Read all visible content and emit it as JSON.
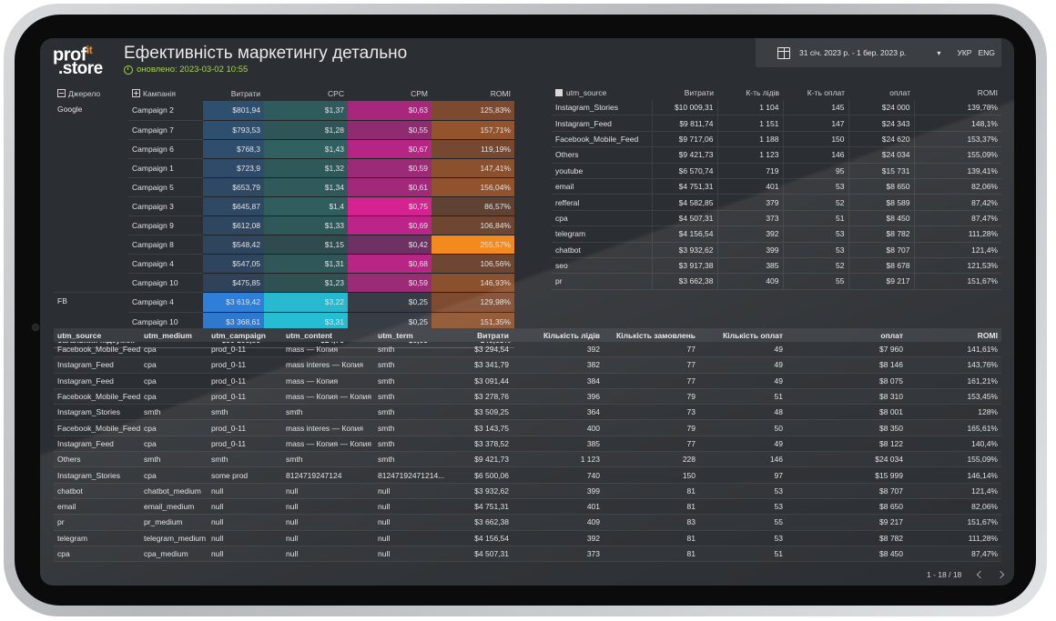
{
  "header": {
    "logo_line1": "prof",
    "logo_it": "it",
    "logo_line2": ".store",
    "title": "Ефективність маркетингу детально",
    "updated": "оновлено: 2023-03-02 10:55",
    "date_range": "31 січ. 2023 р. - 1 бер. 2023 р.",
    "dropdown_arrow": "▾",
    "lang_ukr": "УКР",
    "lang_eng": "ENG"
  },
  "campaigns": {
    "headers": {
      "source": "Джерело",
      "campaign": "Кампанія",
      "spend": "Витрати",
      "cpc": "CPC",
      "cpm": "CPM",
      "romi": "ROMI"
    },
    "rows": [
      {
        "source": "Google",
        "campaign": "Campaign 2",
        "spend": "$801,94",
        "cpc": "$1,37",
        "cpm": "$0,63",
        "romi": "125,83%",
        "cs": "#2f4f6f",
        "cc": "#2f5b5c",
        "cm": "#a8267c",
        "cr": "#7d4a30"
      },
      {
        "source": "",
        "campaign": "Campaign 7",
        "spend": "$793,53",
        "cpc": "$1,28",
        "cpm": "$0,55",
        "romi": "157,71%",
        "cs": "#2f4f6f",
        "cc": "#2f5556",
        "cm": "#8f2b71",
        "cr": "#92532d"
      },
      {
        "source": "",
        "campaign": "Campaign 6",
        "spend": "$768,3",
        "cpc": "$1,43",
        "cpm": "$0,67",
        "romi": "119,19%",
        "cs": "#2f4d6c",
        "cc": "#30605f",
        "cm": "#b52584",
        "cr": "#774830"
      },
      {
        "source": "",
        "campaign": "Campaign 1",
        "spend": "$723,9",
        "cpc": "$1,32",
        "cpm": "$0,59",
        "romi": "147,41%",
        "cs": "#2f4b69",
        "cc": "#2f5859",
        "cm": "#9b2a77",
        "cr": "#8b502e"
      },
      {
        "source": "",
        "campaign": "Campaign 5",
        "spend": "$653,79",
        "cpc": "$1,34",
        "cpm": "$0,61",
        "romi": "156,04%",
        "cs": "#2f4864",
        "cc": "#2f595a",
        "cm": "#a1297a",
        "cr": "#91532d"
      },
      {
        "source": "",
        "campaign": "Campaign 3",
        "spend": "$645,87",
        "cpc": "$1,4",
        "cpm": "$0,75",
        "romi": "86,57%",
        "cs": "#2f4863",
        "cc": "#305e5e",
        "cm": "#d42290",
        "cr": "#5f4233"
      },
      {
        "source": "",
        "campaign": "Campaign 9",
        "spend": "$612,08",
        "cpc": "$1,33",
        "cpm": "$0,69",
        "romi": "106,84%",
        "cs": "#2f4661",
        "cc": "#2f5859",
        "cm": "#bc2487",
        "cr": "#6f4631"
      },
      {
        "source": "",
        "campaign": "Campaign 8",
        "spend": "$548,42",
        "cpc": "$1,15",
        "cpm": "$0,42",
        "romi": "255,57%",
        "cs": "#2f445d",
        "cc": "#2f4b4e",
        "cm": "#6e3163",
        "cr": "#f28a1d"
      },
      {
        "source": "",
        "campaign": "Campaign 4",
        "spend": "$547,05",
        "cpc": "$1,31",
        "cpm": "$0,68",
        "romi": "106,56%",
        "cs": "#2f445d",
        "cc": "#2f5758",
        "cm": "#b72585",
        "cr": "#6f4631"
      },
      {
        "source": "",
        "campaign": "Campaign 10",
        "spend": "$475,85",
        "cpc": "$1,23",
        "cpm": "$0,59",
        "romi": "146,93%",
        "cs": "#2f4259",
        "cc": "#2f5152",
        "cm": "#9b2a77",
        "cr": "#8b502e"
      },
      {
        "source": "FB",
        "campaign": "Campaign 4",
        "spend": "$3 619,42",
        "cpc": "$3,22",
        "cpm": "$0,25",
        "romi": "129,98%",
        "cs": "#2f7ed8",
        "cc": "#28b8cf",
        "cm": "#383c44",
        "cr": "#7f4b2f"
      },
      {
        "source": "",
        "campaign": "Campaign 10",
        "spend": "$3 368,61",
        "cpc": "$3,31",
        "cpm": "$0,25",
        "romi": "151,35%",
        "cs": "#2f78cd",
        "cc": "#26bdd3",
        "cm": "#383c44",
        "cr": "#8e522d"
      }
    ],
    "total": {
      "label": "Загальний підсумок",
      "spend": "$36 108,85",
      "cpc": "$24,75",
      "cpm": "$0,03",
      "romi": "145,63%"
    }
  },
  "sources": {
    "headers": {
      "source": "utm_source",
      "spend": "Витрати",
      "leads": "К-ть лідів",
      "payments": "К-ть оплат",
      "paid": "оплат",
      "romi": "ROMI"
    },
    "rows": [
      {
        "source": "Instagram_Stories",
        "spend": "$10 009,31",
        "leads": "1 104",
        "payments": "145",
        "paid": "$24 000",
        "romi": "139,78%"
      },
      {
        "source": "Instagram_Feed",
        "spend": "$9 811,74",
        "leads": "1 151",
        "payments": "147",
        "paid": "$24 343",
        "romi": "148,1%"
      },
      {
        "source": "Facebook_Mobile_Feed",
        "spend": "$9 717,06",
        "leads": "1 188",
        "payments": "150",
        "paid": "$24 620",
        "romi": "153,37%"
      },
      {
        "source": "Others",
        "spend": "$9 421,73",
        "leads": "1 123",
        "payments": "146",
        "paid": "$24 034",
        "romi": "155,09%"
      },
      {
        "source": "youtube",
        "spend": "$6 570,74",
        "leads": "719",
        "payments": "95",
        "paid": "$15 731",
        "romi": "139,41%"
      },
      {
        "source": "email",
        "spend": "$4 751,31",
        "leads": "401",
        "payments": "53",
        "paid": "$8 650",
        "romi": "82,06%"
      },
      {
        "source": "refferal",
        "spend": "$4 582,85",
        "leads": "379",
        "payments": "52",
        "paid": "$8 589",
        "romi": "87,42%"
      },
      {
        "source": "cpa",
        "spend": "$4 507,31",
        "leads": "373",
        "payments": "51",
        "paid": "$8 450",
        "romi": "87,47%"
      },
      {
        "source": "telegram",
        "spend": "$4 156,54",
        "leads": "392",
        "payments": "53",
        "paid": "$8 782",
        "romi": "111,28%"
      },
      {
        "source": "chatbot",
        "spend": "$3 932,62",
        "leads": "399",
        "payments": "53",
        "paid": "$8 707",
        "romi": "121,4%"
      },
      {
        "source": "seo",
        "spend": "$3 917,38",
        "leads": "385",
        "payments": "52",
        "paid": "$8 678",
        "romi": "121,53%"
      },
      {
        "source": "pr",
        "spend": "$3 662,38",
        "leads": "409",
        "payments": "55",
        "paid": "$9 217",
        "romi": "151,67%"
      }
    ]
  },
  "details": {
    "headers": {
      "source": "utm_source",
      "medium": "utm_medium",
      "campaign": "utm_campaign",
      "content": "utm_content",
      "term": "utm_term",
      "spend": "Витрати",
      "leads": "Кількість лідів",
      "orders": "Кількість замовлень",
      "payments": "Кількість оплат",
      "paid": "оплат",
      "romi": "ROMI"
    },
    "rows": [
      {
        "source": "Facebook_Mobile_Feed",
        "medium": "cpa",
        "campaign": "prod_0-11",
        "content": "mass — Копия",
        "term": "smth",
        "spend": "$3 294,54",
        "leads": "392",
        "orders": "77",
        "payments": "49",
        "paid": "$7 960",
        "romi": "141,61%"
      },
      {
        "source": "Instagram_Feed",
        "medium": "cpa",
        "campaign": "prod_0-11",
        "content": "mass interes — Копия",
        "term": "smth",
        "spend": "$3 341,79",
        "leads": "382",
        "orders": "77",
        "payments": "49",
        "paid": "$8 146",
        "romi": "143,76%"
      },
      {
        "source": "Instagram_Feed",
        "medium": "cpa",
        "campaign": "prod_0-11",
        "content": "mass — Копия",
        "term": "smth",
        "spend": "$3 091,44",
        "leads": "384",
        "orders": "77",
        "payments": "49",
        "paid": "$8 075",
        "romi": "161,21%"
      },
      {
        "source": "Facebook_Mobile_Feed",
        "medium": "cpa",
        "campaign": "prod_0-11",
        "content": "mass — Копия — Копия",
        "term": "smth",
        "spend": "$3 278,76",
        "leads": "396",
        "orders": "79",
        "payments": "51",
        "paid": "$8 310",
        "romi": "153,45%"
      },
      {
        "source": "Instagram_Stories",
        "medium": "smth",
        "campaign": "smth",
        "content": "smth",
        "term": "smth",
        "spend": "$3 509,25",
        "leads": "364",
        "orders": "73",
        "payments": "48",
        "paid": "$8 001",
        "romi": "128%"
      },
      {
        "source": "Facebook_Mobile_Feed",
        "medium": "cpa",
        "campaign": "prod_0-11",
        "content": "mass interes — Копия",
        "term": "smth",
        "spend": "$3 143,75",
        "leads": "400",
        "orders": "79",
        "payments": "50",
        "paid": "$8 350",
        "romi": "165,61%"
      },
      {
        "source": "Instagram_Feed",
        "medium": "cpa",
        "campaign": "prod_0-11",
        "content": "mass — Копия — Копия",
        "term": "smth",
        "spend": "$3 378,52",
        "leads": "385",
        "orders": "77",
        "payments": "49",
        "paid": "$8 122",
        "romi": "140,4%"
      },
      {
        "source": "Others",
        "medium": "smth",
        "campaign": "smth",
        "content": "smth",
        "term": "smth",
        "spend": "$9 421,73",
        "leads": "1 123",
        "orders": "228",
        "payments": "146",
        "paid": "$24 034",
        "romi": "155,09%"
      },
      {
        "source": "Instagram_Stories",
        "medium": "cpa",
        "campaign": "some prod",
        "content": "8124719247124",
        "term": "81247192471214...",
        "spend": "$6 500,06",
        "leads": "740",
        "orders": "150",
        "payments": "97",
        "paid": "$15 999",
        "romi": "146,14%"
      },
      {
        "source": "chatbot",
        "medium": "chatbot_medium",
        "campaign": "null",
        "content": "null",
        "term": "null",
        "spend": "$3 932,62",
        "leads": "399",
        "orders": "81",
        "payments": "53",
        "paid": "$8 707",
        "romi": "121,4%"
      },
      {
        "source": "email",
        "medium": "email_medium",
        "campaign": "null",
        "content": "null",
        "term": "null",
        "spend": "$4 751,31",
        "leads": "401",
        "orders": "81",
        "payments": "53",
        "paid": "$8 650",
        "romi": "82,06%"
      },
      {
        "source": "pr",
        "medium": "pr_medium",
        "campaign": "null",
        "content": "null",
        "term": "null",
        "spend": "$3 662,38",
        "leads": "409",
        "orders": "83",
        "payments": "55",
        "paid": "$9 217",
        "romi": "151,67%"
      },
      {
        "source": "telegram",
        "medium": "telegram_medium",
        "campaign": "null",
        "content": "null",
        "term": "null",
        "spend": "$4 156,54",
        "leads": "392",
        "orders": "81",
        "payments": "53",
        "paid": "$8 782",
        "romi": "111,28%"
      },
      {
        "source": "cpa",
        "medium": "cpa_medium",
        "campaign": "null",
        "content": "null",
        "term": "null",
        "spend": "$4 507,31",
        "leads": "373",
        "orders": "81",
        "payments": "51",
        "paid": "$8 450",
        "romi": "87,47%"
      }
    ],
    "pagination": "1 - 18 / 18"
  }
}
